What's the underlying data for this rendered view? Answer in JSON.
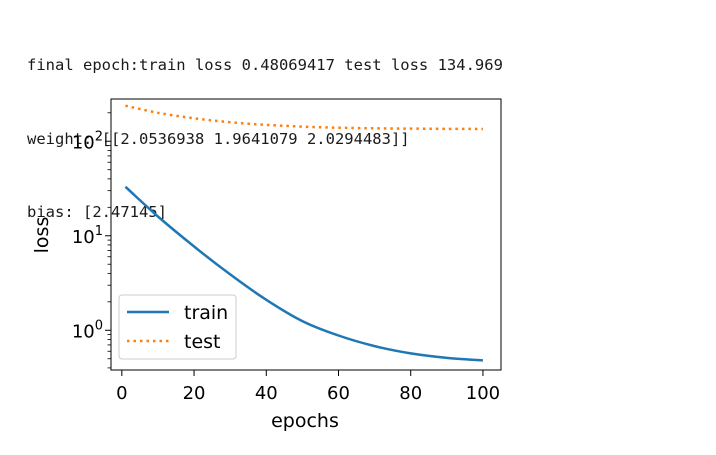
{
  "console": {
    "lines": [
      "final epoch:train loss 0.48069417 test loss 134.969",
      "weight: [[2.0536938 1.9641079 2.0294483]]",
      "bias: [2.47145]"
    ]
  },
  "chart_data": {
    "type": "line",
    "xlabel": "epochs",
    "ylabel": "loss",
    "xlim": [
      -3,
      105
    ],
    "ylim": [
      0.38,
      280
    ],
    "yscale": "log",
    "xticks": [
      0,
      20,
      40,
      60,
      80,
      100
    ],
    "yticks": [
      {
        "value": 1,
        "base": "10",
        "exp": "0"
      },
      {
        "value": 10,
        "base": "10",
        "exp": "1"
      },
      {
        "value": 100,
        "base": "10",
        "exp": "2"
      }
    ],
    "grid": false,
    "legend": "lower-left",
    "series": [
      {
        "name": "train",
        "color": "#1f77b4",
        "linestyle": "solid",
        "x": [
          1,
          10,
          20,
          30,
          40,
          50,
          60,
          70,
          80,
          90,
          100
        ],
        "y": [
          33.0,
          16.0,
          7.7,
          3.9,
          2.1,
          1.25,
          0.88,
          0.68,
          0.57,
          0.51,
          0.48
        ]
      },
      {
        "name": "test",
        "color": "#ff7f0e",
        "linestyle": "dotted",
        "x": [
          1,
          10,
          20,
          30,
          40,
          50,
          60,
          70,
          80,
          90,
          100
        ],
        "y": [
          238,
          200,
          175,
          159,
          149,
          143,
          139,
          137,
          136,
          135.3,
          134.969
        ]
      }
    ]
  }
}
